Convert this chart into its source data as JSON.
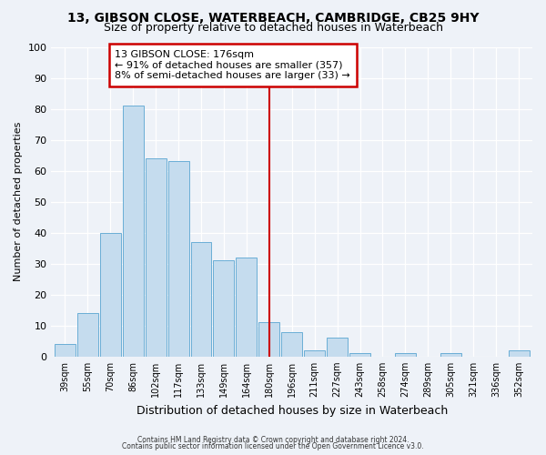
{
  "title1": "13, GIBSON CLOSE, WATERBEACH, CAMBRIDGE, CB25 9HY",
  "title2": "Size of property relative to detached houses in Waterbeach",
  "xlabel": "Distribution of detached houses by size in Waterbeach",
  "ylabel": "Number of detached properties",
  "bar_labels": [
    "39sqm",
    "55sqm",
    "70sqm",
    "86sqm",
    "102sqm",
    "117sqm",
    "133sqm",
    "149sqm",
    "164sqm",
    "180sqm",
    "196sqm",
    "211sqm",
    "227sqm",
    "243sqm",
    "258sqm",
    "274sqm",
    "289sqm",
    "305sqm",
    "321sqm",
    "336sqm",
    "352sqm"
  ],
  "bar_heights": [
    4,
    14,
    40,
    81,
    64,
    63,
    37,
    31,
    32,
    11,
    8,
    2,
    6,
    1,
    0,
    1,
    0,
    1,
    0,
    0,
    2
  ],
  "bar_color": "#c5dcee",
  "bar_edge_color": "#6aaed6",
  "vline_x_index": 9,
  "vline_color": "#cc0000",
  "annotation_line1": "13 GIBSON CLOSE: 176sqm",
  "annotation_line2": "← 91% of detached houses are smaller (357)",
  "annotation_line3": "8% of semi-detached houses are larger (33) →",
  "annotation_box_color": "#ffffff",
  "annotation_box_edge": "#cc0000",
  "ylim": [
    0,
    100
  ],
  "yticks": [
    0,
    10,
    20,
    30,
    40,
    50,
    60,
    70,
    80,
    90,
    100
  ],
  "footer1": "Contains HM Land Registry data © Crown copyright and database right 2024.",
  "footer2": "Contains public sector information licensed under the Open Government Licence v3.0.",
  "bg_color": "#eef2f8",
  "grid_color": "#ffffff",
  "title1_fontsize": 10,
  "title2_fontsize": 9
}
